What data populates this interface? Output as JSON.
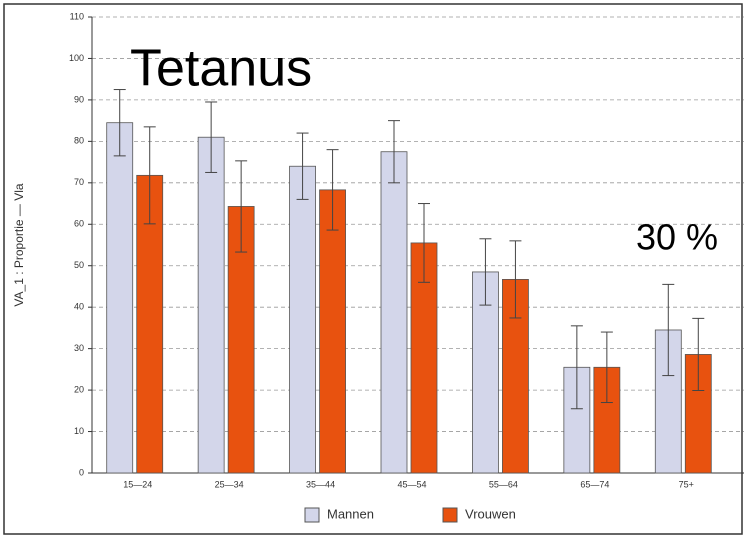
{
  "chart_data": {
    "type": "bar",
    "annotations": [
      "Tetanus",
      "30 %"
    ],
    "y_label": "VA_1 : Proportie  —  Vla",
    "categories": [
      "15—24",
      "25—34",
      "35—44",
      "45—54",
      "55—64",
      "65—74",
      "75+"
    ],
    "series": [
      {
        "name": "Mannen",
        "color": "#d3d6ea",
        "values": [
          84.5,
          81,
          74,
          77.5,
          48.5,
          25.5,
          34.5
        ],
        "errors": [
          8,
          8.5,
          8,
          7.5,
          8,
          10,
          11
        ]
      },
      {
        "name": "Vrouwen",
        "color": "#e8520f",
        "values": [
          71.8,
          64.3,
          68.3,
          55.5,
          46.7,
          25.5,
          28.6
        ],
        "errors": [
          11.7,
          11,
          9.7,
          9.5,
          9.3,
          8.5,
          8.7
        ]
      }
    ],
    "ylim": [
      0,
      110
    ],
    "yticks": [
      0,
      10,
      20,
      30,
      40,
      50,
      60,
      70,
      80,
      90,
      100,
      110
    ],
    "grid": true,
    "legend": "bottom"
  }
}
